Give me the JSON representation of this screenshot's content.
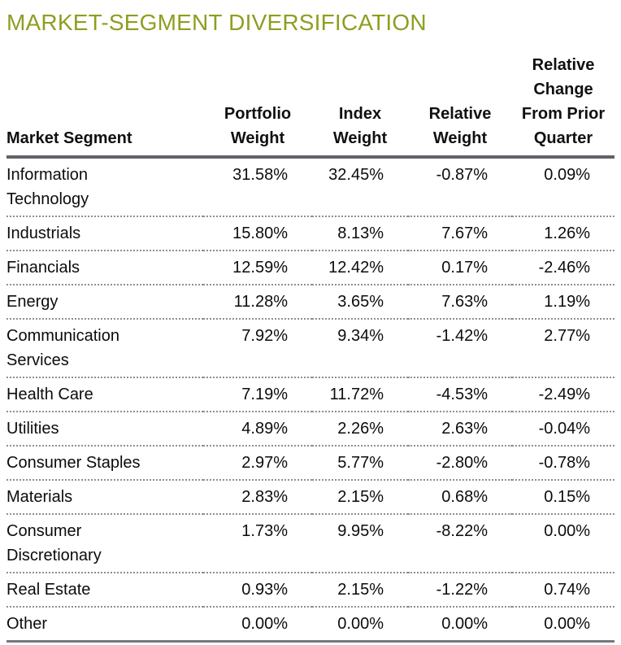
{
  "title": "MARKET-SEGMENT DIVERSIFICATION",
  "colors": {
    "title_green": "#8f9e20",
    "rule_dark_gray": "#5f6266",
    "rule_bottom_gray": "#75787b",
    "dotted_separator_gray": "#8f8f8f",
    "text_black": "#0c0c0c"
  },
  "table": {
    "columns": [
      {
        "id": "segment",
        "label": "Market Segment"
      },
      {
        "id": "portfolio_weight",
        "label": "Portfolio\nWeight"
      },
      {
        "id": "index_weight",
        "label": "Index\nWeight"
      },
      {
        "id": "relative_weight",
        "label": "Relative\nWeight"
      },
      {
        "id": "relative_change",
        "label": "Relative\nChange\nFrom Prior\nQuarter"
      }
    ],
    "rows": [
      {
        "segment": "Information\nTechnology",
        "portfolio_weight": "31.58%",
        "index_weight": "32.45%",
        "relative_weight": "-0.87%",
        "relative_change": "0.09%"
      },
      {
        "segment": "Industrials",
        "portfolio_weight": "15.80%",
        "index_weight": "8.13%",
        "relative_weight": "7.67%",
        "relative_change": "1.26%"
      },
      {
        "segment": "Financials",
        "portfolio_weight": "12.59%",
        "index_weight": "12.42%",
        "relative_weight": "0.17%",
        "relative_change": "-2.46%"
      },
      {
        "segment": "Energy",
        "portfolio_weight": "11.28%",
        "index_weight": "3.65%",
        "relative_weight": "7.63%",
        "relative_change": "1.19%"
      },
      {
        "segment": "Communication\nServices",
        "portfolio_weight": "7.92%",
        "index_weight": "9.34%",
        "relative_weight": "-1.42%",
        "relative_change": "2.77%"
      },
      {
        "segment": "Health Care",
        "portfolio_weight": "7.19%",
        "index_weight": "11.72%",
        "relative_weight": "-4.53%",
        "relative_change": "-2.49%"
      },
      {
        "segment": "Utilities",
        "portfolio_weight": "4.89%",
        "index_weight": "2.26%",
        "relative_weight": "2.63%",
        "relative_change": "-0.04%"
      },
      {
        "segment": "Consumer Staples",
        "portfolio_weight": "2.97%",
        "index_weight": "5.77%",
        "relative_weight": "-2.80%",
        "relative_change": "-0.78%"
      },
      {
        "segment": "Materials",
        "portfolio_weight": "2.83%",
        "index_weight": "2.15%",
        "relative_weight": "0.68%",
        "relative_change": "0.15%"
      },
      {
        "segment": "Consumer\nDiscretionary",
        "portfolio_weight": "1.73%",
        "index_weight": "9.95%",
        "relative_weight": "-8.22%",
        "relative_change": "0.00%"
      },
      {
        "segment": "Real Estate",
        "portfolio_weight": "0.93%",
        "index_weight": "2.15%",
        "relative_weight": "-1.22%",
        "relative_change": "0.74%"
      },
      {
        "segment": "Other",
        "portfolio_weight": "0.00%",
        "index_weight": "0.00%",
        "relative_weight": "0.00%",
        "relative_change": "0.00%"
      }
    ]
  }
}
